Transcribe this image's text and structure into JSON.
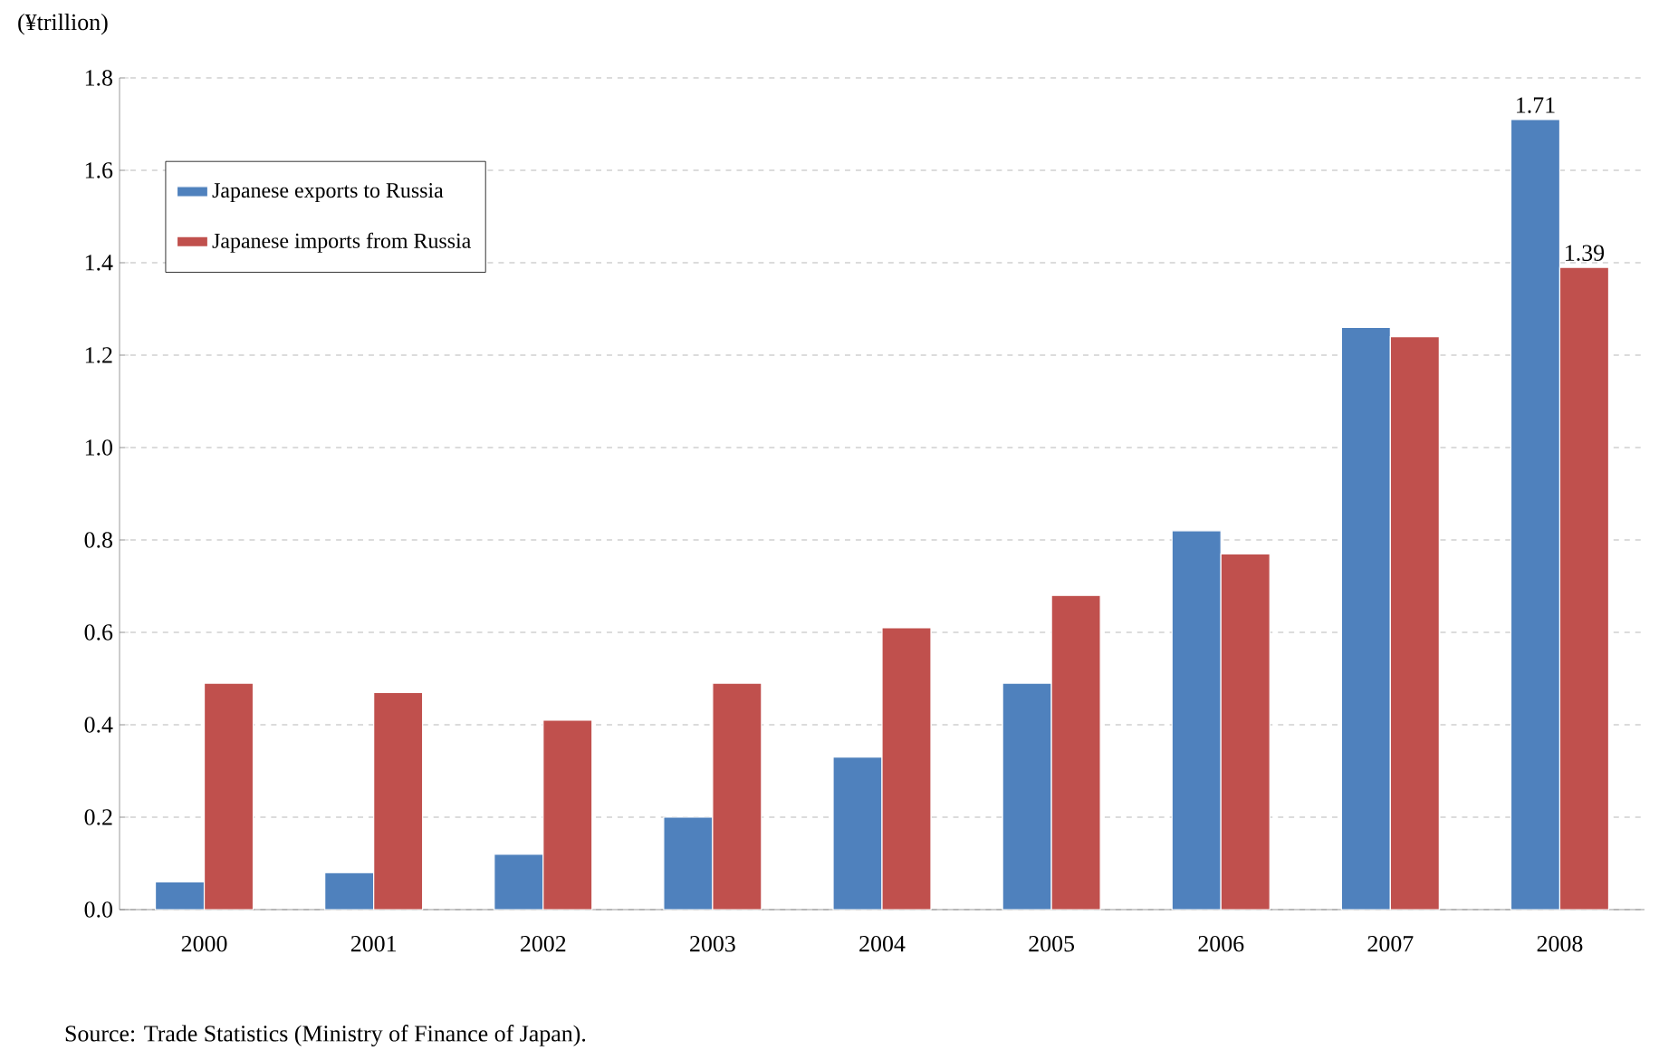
{
  "chart_data": {
    "type": "bar",
    "ylabel": "(¥trillion)",
    "categories": [
      "2000",
      "2001",
      "2002",
      "2003",
      "2004",
      "2005",
      "2006",
      "2007",
      "2008"
    ],
    "series": [
      {
        "name": "Japanese exports to Russia",
        "color": "#4f81bd",
        "values": [
          0.06,
          0.08,
          0.12,
          0.2,
          0.33,
          0.49,
          0.82,
          1.26,
          1.71
        ],
        "value_labels": [
          null,
          null,
          null,
          null,
          null,
          null,
          null,
          null,
          "1.71"
        ]
      },
      {
        "name": "Japanese imports from Russia",
        "color": "#c0504d",
        "values": [
          0.49,
          0.47,
          0.41,
          0.49,
          0.61,
          0.68,
          0.77,
          1.24,
          1.39
        ],
        "value_labels": [
          null,
          null,
          null,
          null,
          null,
          null,
          null,
          null,
          "1.39"
        ]
      }
    ],
    "ylim": [
      0,
      1.8
    ],
    "yticks": [
      {
        "value": 0,
        "label": "0.0"
      },
      {
        "value": 0.2,
        "label": "0.2"
      },
      {
        "value": 0.4,
        "label": "0.4"
      },
      {
        "value": 0.6,
        "label": "0.6"
      },
      {
        "value": 0.8,
        "label": "0.8"
      },
      {
        "value": 1.0,
        "label": "1.0"
      },
      {
        "value": 1.2,
        "label": "1.2"
      },
      {
        "value": 1.4,
        "label": "1.4"
      },
      {
        "value": 1.6,
        "label": "1.6"
      },
      {
        "value": 1.8,
        "label": "1.8"
      }
    ],
    "grid": "y",
    "legend": "top left",
    "annotations": [
      "Source: Trade Statistics (Ministry of Finance of Japan)."
    ]
  }
}
